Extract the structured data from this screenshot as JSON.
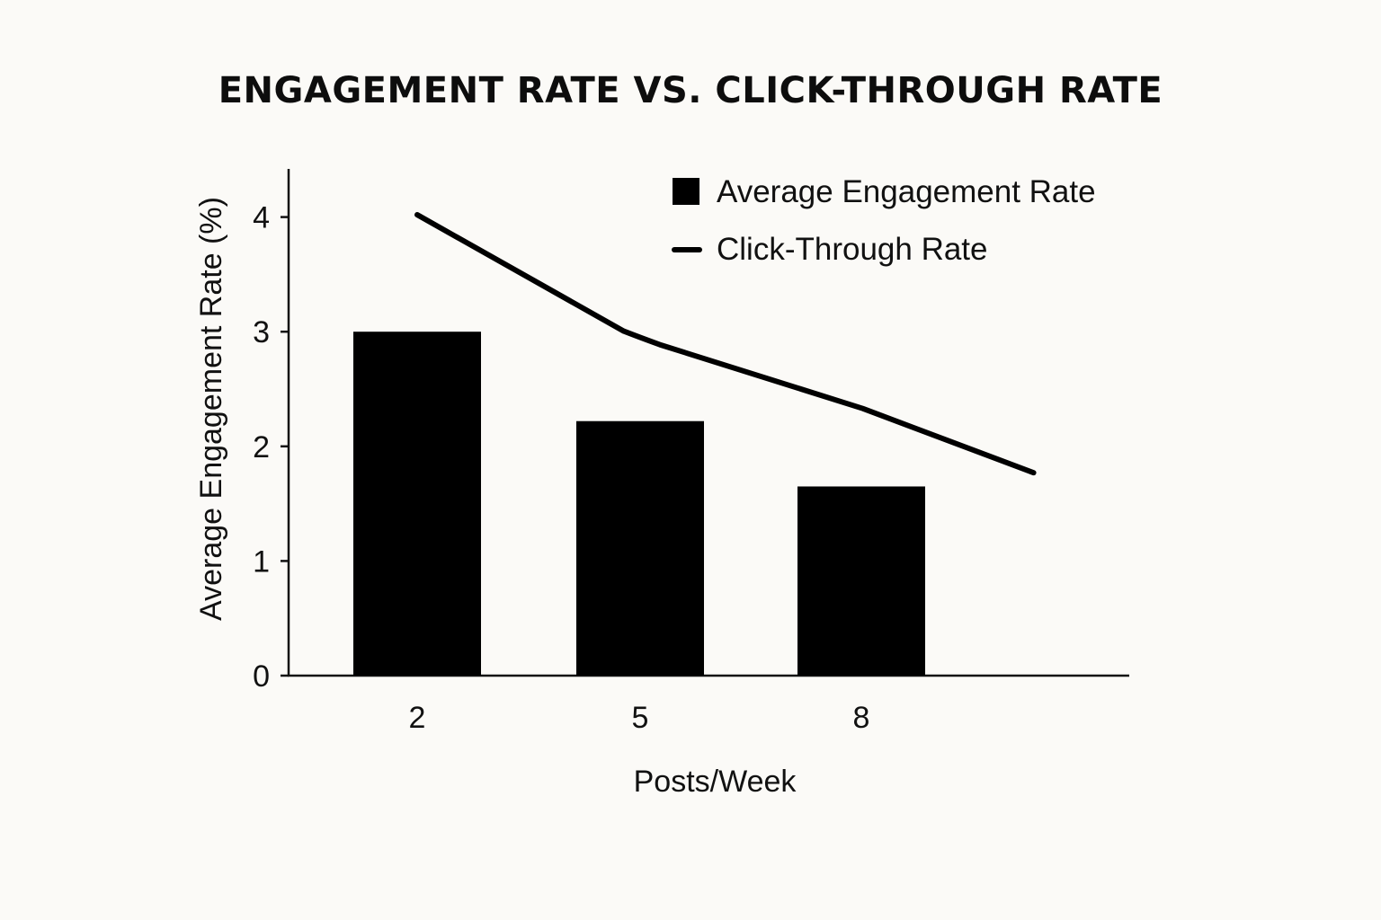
{
  "chart_data": {
    "type": "bar",
    "title": "ENGAGEMENT RATE VS. CLICK-THROUGH RATE",
    "xlabel": "Posts/Week",
    "ylabel": "Average Engagement Rate (%)",
    "categories": [
      "2",
      "5",
      "8"
    ],
    "ylim": [
      0,
      4.4
    ],
    "yticks": [
      0,
      1,
      2,
      3,
      4
    ],
    "grid": false,
    "legend_position": "top-right",
    "series": [
      {
        "name": "Average Engagement Rate",
        "type": "bar",
        "color": "#000000",
        "values": [
          3.0,
          2.22,
          1.65
        ]
      },
      {
        "name": "Click-Through Rate",
        "type": "line",
        "color": "#000000",
        "x": [
          2,
          5,
          8,
          10.3
        ],
        "values": [
          4.02,
          2.95,
          2.33,
          1.77
        ]
      }
    ]
  }
}
